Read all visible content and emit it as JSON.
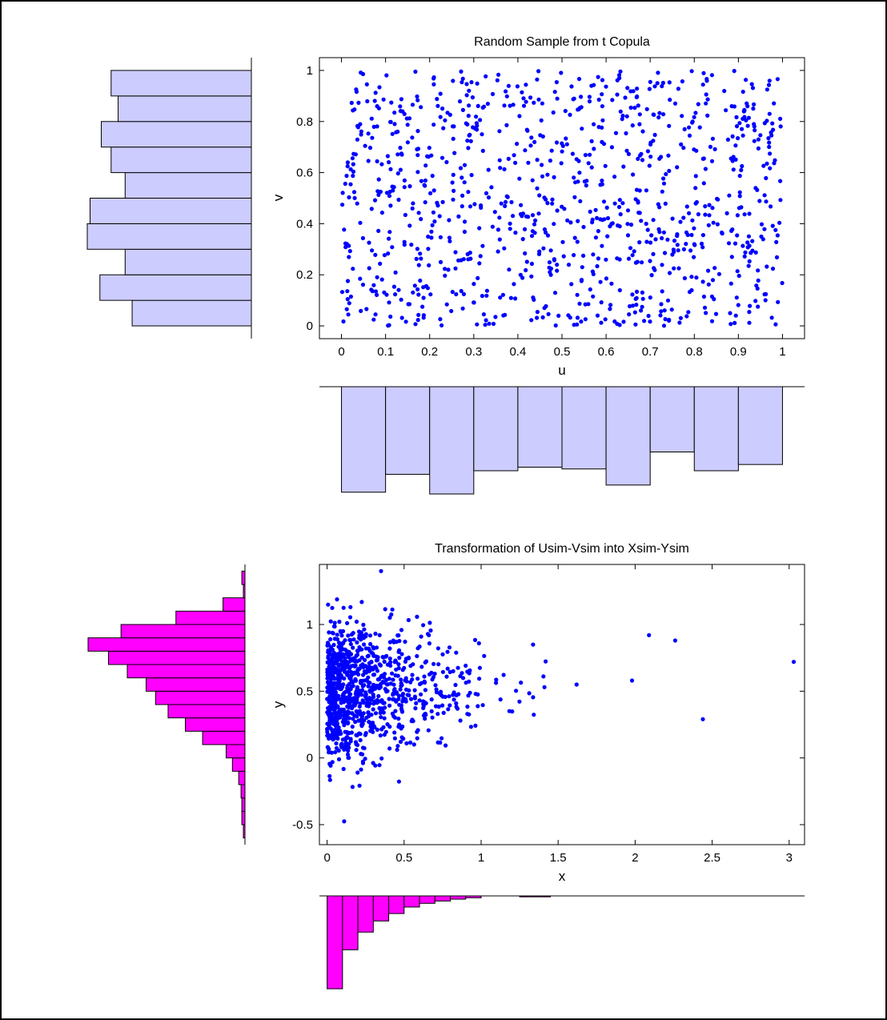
{
  "colors": {
    "point": "#0000ff",
    "hist_top_fill": "#ccccff",
    "hist_bottom_fill": "#ff00ff",
    "edge": "#000000",
    "background": "#ffffff"
  },
  "chart_data": [
    {
      "id": "top-scatter",
      "type": "scatter",
      "title": "Random Sample from t Copula",
      "xlabel": "u",
      "ylabel": "v",
      "xlim": [
        -0.05,
        1.05
      ],
      "ylim": [
        -0.05,
        1.05
      ],
      "xticks": [
        "0",
        "0.1",
        "0.2",
        "0.3",
        "0.4",
        "0.5",
        "0.6",
        "0.7",
        "0.8",
        "0.9",
        "1"
      ],
      "yticks": [
        "0",
        "0.2",
        "0.4",
        "0.6",
        "0.8",
        "1"
      ],
      "grid": false,
      "n_points": 1000,
      "color": "#0000ff"
    },
    {
      "id": "top-u-histogram",
      "type": "bar",
      "orientation": "downward",
      "categories": [
        "0.05",
        "0.15",
        "0.25",
        "0.35",
        "0.45",
        "0.55",
        "0.65",
        "0.75",
        "0.85",
        "0.95"
      ],
      "values": [
        1.18,
        0.98,
        1.2,
        0.94,
        0.9,
        0.92,
        1.1,
        0.73,
        0.94,
        0.87
      ],
      "color": "#ccccff"
    },
    {
      "id": "top-v-histogram",
      "type": "bar",
      "orientation": "leftward",
      "categories": [
        "0.05",
        "0.15",
        "0.25",
        "0.35",
        "0.45",
        "0.55",
        "0.65",
        "0.75",
        "0.85",
        "0.95"
      ],
      "values": [
        0.85,
        1.08,
        0.9,
        1.17,
        1.15,
        0.9,
        1.0,
        1.07,
        0.95,
        1.0
      ],
      "color": "#ccccff"
    },
    {
      "id": "bottom-scatter",
      "type": "scatter",
      "title": "Transformation of Usim-Vsim into Xsim-Ysim",
      "xlabel": "x",
      "ylabel": "y",
      "xlim": [
        -0.05,
        3.1
      ],
      "ylim": [
        -0.65,
        1.45
      ],
      "xticks": [
        "0",
        "0.5",
        "1",
        "1.5",
        "2",
        "2.5",
        "3"
      ],
      "yticks": [
        "-0.5",
        "0",
        "0.5",
        "1"
      ],
      "grid": false,
      "n_points": 1000,
      "color": "#0000ff",
      "outliers": [
        {
          "x": 0.35,
          "y": 1.4
        },
        {
          "x": 1.62,
          "y": 0.55
        },
        {
          "x": 1.98,
          "y": 0.58
        },
        {
          "x": 2.09,
          "y": 0.92
        },
        {
          "x": 2.26,
          "y": 0.88
        },
        {
          "x": 2.44,
          "y": 0.29
        },
        {
          "x": 3.03,
          "y": 0.72
        }
      ]
    },
    {
      "id": "bottom-x-histogram",
      "type": "bar",
      "orientation": "downward",
      "categories": [
        "0.05",
        "0.15",
        "0.25",
        "0.35",
        "0.45",
        "0.55",
        "0.65",
        "0.75",
        "0.85",
        "0.95",
        "1.3"
      ],
      "values": [
        1.0,
        0.58,
        0.39,
        0.27,
        0.19,
        0.12,
        0.08,
        0.055,
        0.035,
        0.02,
        0.01
      ],
      "color": "#ff00ff"
    },
    {
      "id": "bottom-y-histogram",
      "type": "bar",
      "orientation": "leftward",
      "categories": [
        "-0.55",
        "-0.45",
        "-0.35",
        "-0.25",
        "-0.15",
        "-0.05",
        "0.05",
        "0.15",
        "0.25",
        "0.35",
        "0.45",
        "0.55",
        "0.65",
        "0.75",
        "0.85",
        "0.95",
        "1.05",
        "1.15",
        "1.25",
        "1.35"
      ],
      "values": [
        0.01,
        0.02,
        0.02,
        0.025,
        0.04,
        0.08,
        0.12,
        0.27,
        0.38,
        0.49,
        0.57,
        0.63,
        0.75,
        0.87,
        1.0,
        0.79,
        0.44,
        0.14,
        0.01,
        0.02
      ],
      "color": "#ff00ff"
    }
  ]
}
